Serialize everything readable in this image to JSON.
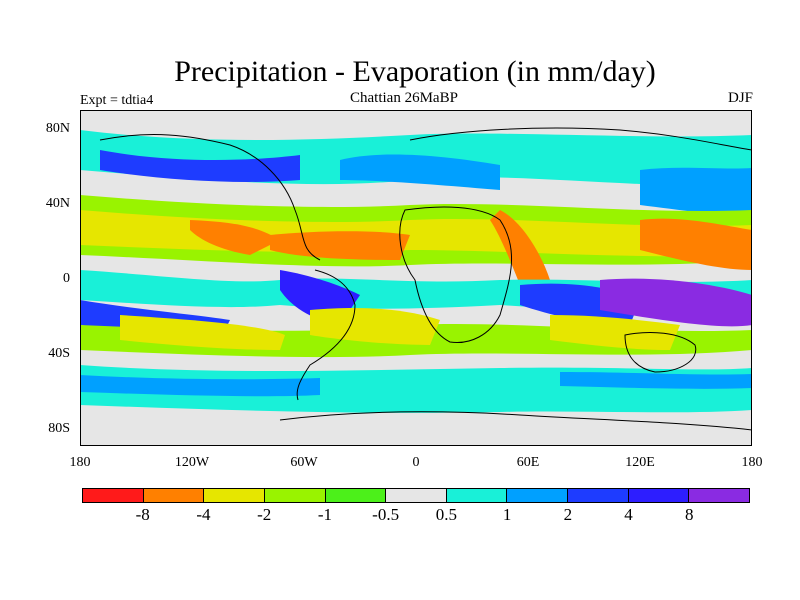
{
  "title": "Precipitation - Evaporation (in mm/day)",
  "subtitle_left": "Expt = tdtia4",
  "subtitle_center": "Chattian  26MaBP",
  "subtitle_right": "DJF",
  "lat_ticks": [
    "80N",
    "40N",
    "0",
    "40S",
    "80S"
  ],
  "lon_ticks": [
    "180",
    "120W",
    "60W",
    "0",
    "60E",
    "120E",
    "180"
  ],
  "colorbar": {
    "labels": [
      "-8",
      "-4",
      "-2",
      "-1",
      "-0.5",
      "0.5",
      "1",
      "2",
      "4",
      "8"
    ],
    "colors": [
      "#ff1a1a",
      "#ff8000",
      "#e6e600",
      "#99f300",
      "#4cf01a",
      "#e6e6e6",
      "#19f0d8",
      "#00a0ff",
      "#1e3cff",
      "#2d1eff",
      "#8a2be2"
    ]
  }
}
